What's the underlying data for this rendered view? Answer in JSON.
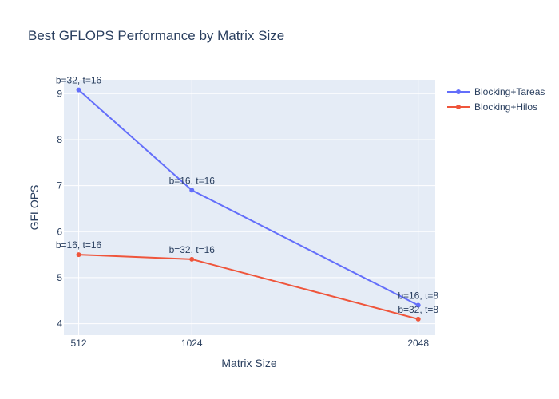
{
  "chart_data": {
    "type": "line",
    "title": "Best GFLOPS Performance by Matrix Size",
    "xlabel": "Matrix Size",
    "ylabel": "GFLOPS",
    "x": [
      512,
      1024,
      2048
    ],
    "x_tick_labels": [
      "512",
      "1024",
      "2048"
    ],
    "xlim": [
      445,
      2125
    ],
    "ylim": [
      3.75,
      9.3
    ],
    "y_ticks": [
      4,
      5,
      6,
      7,
      8,
      9
    ],
    "grid": true,
    "legend_position": "top-right",
    "series": [
      {
        "name": "Blocking+Tareas",
        "color": "#636efa",
        "values": [
          9.08,
          6.9,
          4.4
        ],
        "labels": [
          "b=32, t=16",
          "b=16, t=16",
          "b=16, t=8"
        ]
      },
      {
        "name": "Blocking+Hilos",
        "color": "#ef553b",
        "values": [
          5.5,
          5.4,
          4.1
        ],
        "labels": [
          "b=16, t=16",
          "b=32, t=16",
          "b=32, t=8"
        ]
      }
    ]
  }
}
